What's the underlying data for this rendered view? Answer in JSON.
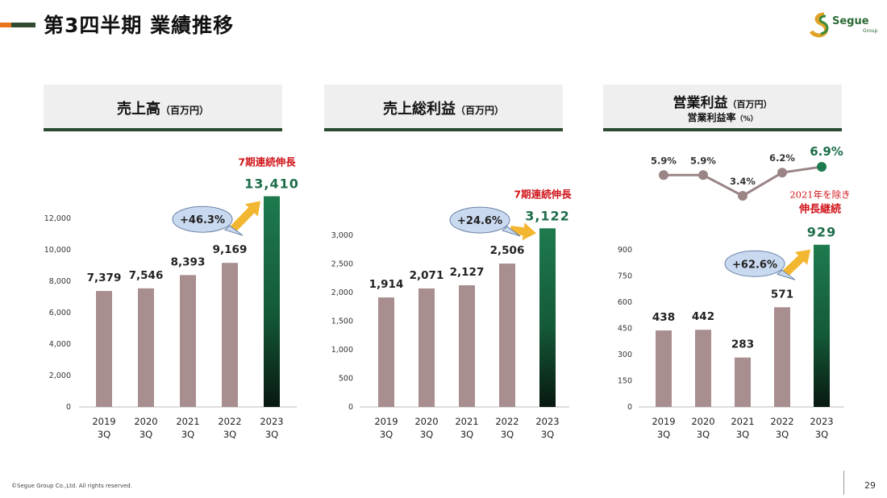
{
  "header": {
    "title": "第3四半期  業績推移",
    "logo_text": "Segue",
    "logo_sub": "Group"
  },
  "colors": {
    "bar": "#a98e90",
    "accent_bar_top": "#1e7a4e",
    "accent_bar_bottom": "#0a1a0f",
    "accent_text": "#1e6e4a",
    "red": "#d0171d",
    "arrow": "#f2b631",
    "bubble": "#c9d9f0",
    "line": "#9a8486",
    "line_last": "#1e7a4e"
  },
  "charts": [
    {
      "panel_title": "売上高",
      "panel_unit": "（百万円）",
      "panel_subtitle": "",
      "panel_subunit": "",
      "callout": "7期連続伸長",
      "growth": "+46.3%",
      "yticks": [
        "0",
        "2,000",
        "4,000",
        "6,000",
        "8,000",
        "10,000",
        "12,000"
      ],
      "xlabels_year": [
        "2019",
        "2020",
        "2021",
        "2022",
        "2023"
      ],
      "xlabels_q": [
        "3Q",
        "3Q",
        "3Q",
        "3Q",
        "3Q"
      ],
      "value_labels": [
        "7,379",
        "7,546",
        "8,393",
        "9,169",
        "13,410"
      ]
    },
    {
      "panel_title": "売上総利益",
      "panel_unit": "（百万円）",
      "panel_subtitle": "",
      "panel_subunit": "",
      "callout": "7期連続伸長",
      "growth": "+24.6%",
      "yticks": [
        "0",
        "500",
        "1,000",
        "1,500",
        "2,000",
        "2,500",
        "3,000"
      ],
      "xlabels_year": [
        "2019",
        "2020",
        "2021",
        "2022",
        "2023"
      ],
      "xlabels_q": [
        "3Q",
        "3Q",
        "3Q",
        "3Q",
        "3Q"
      ],
      "value_labels": [
        "1,914",
        "2,071",
        "2,127",
        "2,506",
        "3,122"
      ]
    },
    {
      "panel_title": "営業利益",
      "panel_unit": "（百万円）",
      "panel_subtitle": "営業利益率",
      "panel_subunit": "（%）",
      "callout_line1": "2021年を除き",
      "callout_line2": "伸長継続",
      "growth": "+62.6%",
      "yticks": [
        "0",
        "150",
        "300",
        "450",
        "600",
        "750",
        "900"
      ],
      "xlabels_year": [
        "2019",
        "2020",
        "2021",
        "2022",
        "2023"
      ],
      "xlabels_q": [
        "3Q",
        "3Q",
        "3Q",
        "3Q",
        "3Q"
      ],
      "value_labels": [
        "438",
        "442",
        "283",
        "571",
        "929"
      ],
      "margin_labels": [
        "5.9%",
        "5.9%",
        "3.4%",
        "6.2%",
        "6.9%"
      ]
    }
  ],
  "chart_data": [
    {
      "type": "bar",
      "title": "売上高（百万円）",
      "categories": [
        "2019 3Q",
        "2020 3Q",
        "2021 3Q",
        "2022 3Q",
        "2023 3Q"
      ],
      "values": [
        7379,
        7546,
        8393,
        9169,
        13410
      ],
      "ylim": [
        0,
        13410
      ],
      "grid": false
    },
    {
      "type": "bar",
      "title": "売上総利益（百万円）",
      "categories": [
        "2019 3Q",
        "2020 3Q",
        "2021 3Q",
        "2022 3Q",
        "2023 3Q"
      ],
      "values": [
        1914,
        2071,
        2127,
        2506,
        3122
      ],
      "ylim": [
        0,
        3200
      ],
      "grid": false
    },
    {
      "type": "bar",
      "title": "営業利益（百万円）",
      "categories": [
        "2019 3Q",
        "2020 3Q",
        "2021 3Q",
        "2022 3Q",
        "2023 3Q"
      ],
      "values": [
        438,
        442,
        283,
        571,
        929
      ],
      "ylim": [
        0,
        960
      ],
      "grid": false,
      "series": [
        {
          "name": "営業利益率（%）",
          "type": "line",
          "values": [
            5.9,
            5.9,
            3.4,
            6.2,
            6.9
          ]
        }
      ]
    }
  ],
  "footer": {
    "copyright": "©Segue Group Co.,Ltd. All rights reserved.",
    "page": "29"
  }
}
